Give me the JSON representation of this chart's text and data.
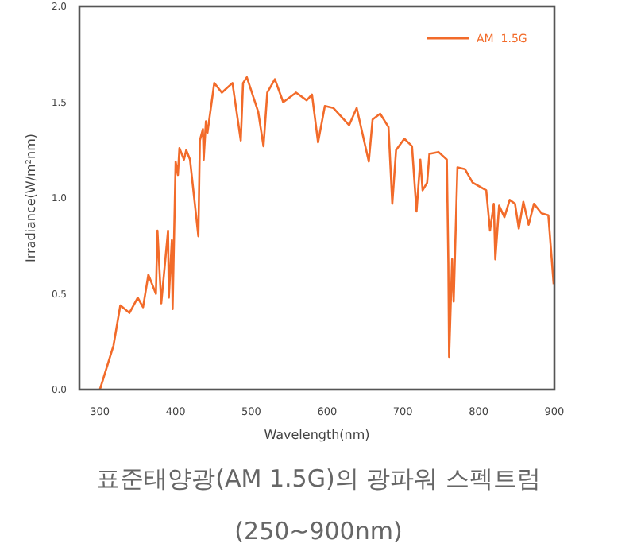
{
  "chart_data": {
    "type": "line",
    "title": "표준태양광(AM 1.5G)의 광파워 스펙트럼",
    "subtitle": "(250~900nm)",
    "xlabel": "Wavelength(nm)",
    "ylabel": "Irradiance(W/m²nm)",
    "xlim": [
      273,
      900
    ],
    "xticks": [
      300,
      400,
      500,
      600,
      700,
      800,
      900
    ],
    "ylim": [
      0,
      2
    ],
    "yticks": [
      {
        "value": 0,
        "label": "0.0"
      },
      {
        "value": 0.5,
        "label": "0.5"
      },
      {
        "value": 1,
        "label": "1.0"
      },
      {
        "value": 1.5,
        "label": "1.5"
      },
      {
        "value": 2,
        "label": "2.0"
      }
    ],
    "grid": false,
    "legend": "top right",
    "marker": "none",
    "line_style": "solid",
    "series": [
      {
        "name": "AM  1.5G",
        "color": "#f26b2a",
        "x": [
          300,
          318,
          327,
          339,
          350,
          357,
          364,
          374,
          376,
          381,
          390,
          391,
          395,
          396,
          400,
          403,
          405,
          411,
          414,
          419,
          430,
          432,
          436,
          437,
          440,
          442,
          451,
          461,
          475,
          486,
          489,
          494,
          509,
          516,
          521,
          531,
          542,
          559,
          573,
          580,
          588,
          597,
          608,
          629,
          639,
          655,
          660,
          670,
          681,
          686,
          691,
          702,
          712,
          718,
          723,
          726,
          732,
          735,
          747,
          758,
          760,
          761,
          765,
          767,
          772,
          782,
          792,
          810,
          815,
          820,
          822,
          827,
          834,
          841,
          848,
          853,
          859,
          866,
          873,
          883,
          892,
          899
        ],
        "values": [
          0,
          0.23,
          0.44,
          0.4,
          0.48,
          0.43,
          0.6,
          0.5,
          0.83,
          0.45,
          0.83,
          0.48,
          0.78,
          0.42,
          1.19,
          1.12,
          1.26,
          1.2,
          1.25,
          1.2,
          0.8,
          1.3,
          1.36,
          1.2,
          1.4,
          1.34,
          1.6,
          1.55,
          1.6,
          1.3,
          1.6,
          1.63,
          1.45,
          1.27,
          1.55,
          1.62,
          1.5,
          1.55,
          1.51,
          1.54,
          1.29,
          1.48,
          1.47,
          1.38,
          1.47,
          1.19,
          1.41,
          1.44,
          1.37,
          0.97,
          1.25,
          1.31,
          1.27,
          0.93,
          1.2,
          1.04,
          1.08,
          1.23,
          1.24,
          1.2,
          0.66,
          0.17,
          0.68,
          0.46,
          1.16,
          1.15,
          1.08,
          1.04,
          0.83,
          0.97,
          0.68,
          0.96,
          0.9,
          0.99,
          0.97,
          0.84,
          0.98,
          0.86,
          0.97,
          0.92,
          0.91,
          0.55
        ]
      }
    ]
  }
}
